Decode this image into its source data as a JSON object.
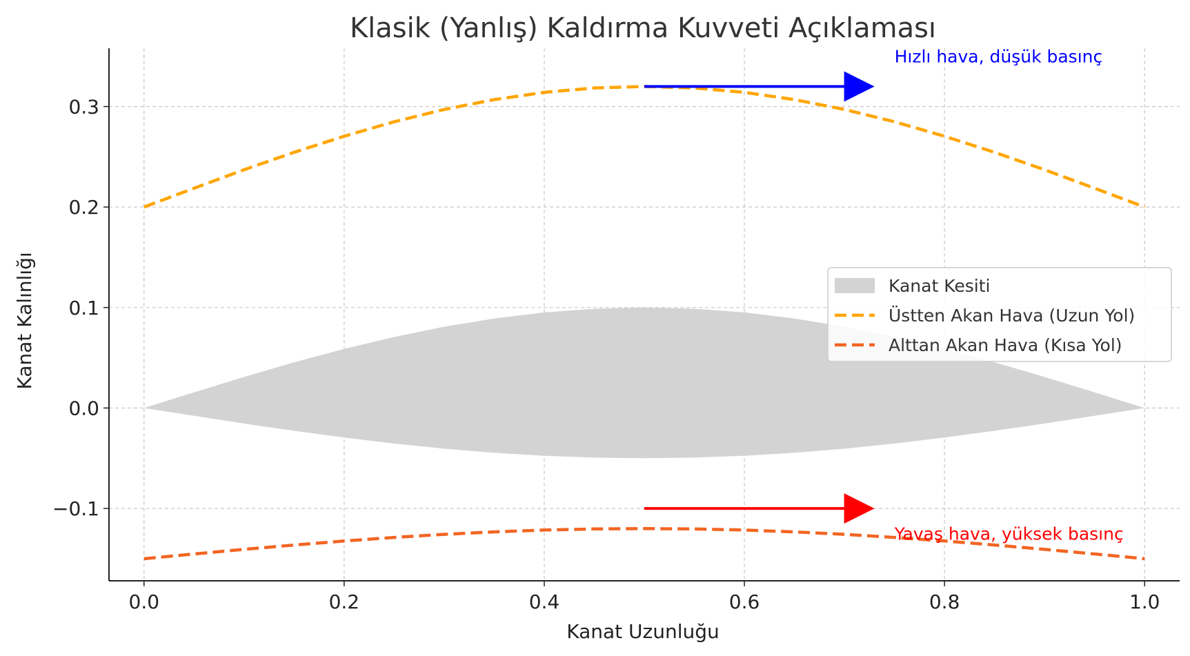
{
  "chart_data": {
    "type": "area",
    "title": "Klasik (Yanlış) Kaldırma Kuvveti Açıklaması",
    "xlabel": "Kanat Uzunluğu",
    "ylabel": "Kanat Kalınlığı",
    "xlim": [
      -0.035,
      1.035
    ],
    "ylim": [
      -0.172,
      0.358
    ],
    "xticks": [
      0.0,
      0.2,
      0.4,
      0.6,
      0.8,
      1.0
    ],
    "xtick_labels": [
      "0.0",
      "0.2",
      "0.4",
      "0.6",
      "0.8",
      "1.0"
    ],
    "yticks": [
      -0.1,
      0.0,
      0.1,
      0.2,
      0.3
    ],
    "ytick_labels": [
      "−0.1",
      "0.0",
      "0.1",
      "0.2",
      "0.3"
    ],
    "grid": true,
    "legend_position": "center-right",
    "series": [
      {
        "name": "Kanat Kesiti",
        "kind": "fill",
        "color": "#d3d3d3",
        "x": [
          0.0,
          0.05,
          0.1,
          0.15,
          0.2,
          0.25,
          0.3,
          0.35,
          0.4,
          0.45,
          0.5,
          0.55,
          0.6,
          0.65,
          0.7,
          0.75,
          0.8,
          0.85,
          0.9,
          0.95,
          1.0
        ],
        "upper": [
          0.0,
          0.0156,
          0.0309,
          0.0454,
          0.0588,
          0.0707,
          0.0809,
          0.0891,
          0.0951,
          0.0988,
          0.1,
          0.0988,
          0.0951,
          0.0891,
          0.0809,
          0.0707,
          0.0588,
          0.0454,
          0.0309,
          0.0156,
          0.0
        ],
        "lower": [
          0.0,
          -0.0078,
          -0.0155,
          -0.0227,
          -0.0294,
          -0.0354,
          -0.0405,
          -0.0446,
          -0.0476,
          -0.0494,
          -0.05,
          -0.0494,
          -0.0476,
          -0.0446,
          -0.0405,
          -0.0354,
          -0.0294,
          -0.0227,
          -0.0155,
          -0.0078,
          0.0
        ]
      },
      {
        "name": "Üstten Akan Hava (Uzun Yol)",
        "kind": "line",
        "style": "dashed",
        "color": "#ffa500",
        "x": [
          0.0,
          0.05,
          0.1,
          0.15,
          0.2,
          0.25,
          0.3,
          0.35,
          0.4,
          0.45,
          0.5,
          0.55,
          0.6,
          0.65,
          0.7,
          0.75,
          0.8,
          0.85,
          0.9,
          0.95,
          1.0
        ],
        "y": [
          0.2,
          0.2187,
          0.2371,
          0.2545,
          0.2705,
          0.2849,
          0.2971,
          0.3069,
          0.3141,
          0.3185,
          0.32,
          0.3185,
          0.3141,
          0.3069,
          0.2971,
          0.2849,
          0.2705,
          0.2545,
          0.2371,
          0.2187,
          0.2
        ]
      },
      {
        "name": "Alttan Akan Hava (Kısa Yol)",
        "kind": "line",
        "style": "dashed",
        "color": "#f26522",
        "x": [
          0.0,
          0.05,
          0.1,
          0.15,
          0.2,
          0.25,
          0.3,
          0.35,
          0.4,
          0.45,
          0.5,
          0.55,
          0.6,
          0.65,
          0.7,
          0.75,
          0.8,
          0.85,
          0.9,
          0.95,
          1.0
        ],
        "y": [
          -0.15,
          -0.1453,
          -0.1407,
          -0.1364,
          -0.1324,
          -0.1288,
          -0.1257,
          -0.1233,
          -0.1215,
          -0.1204,
          -0.12,
          -0.1204,
          -0.1215,
          -0.1233,
          -0.1257,
          -0.1288,
          -0.1324,
          -0.1364,
          -0.1407,
          -0.1453,
          -0.15
        ]
      }
    ],
    "arrows": [
      {
        "x_start": 0.5,
        "y": 0.32,
        "x_end": 0.73,
        "color": "#0000ff"
      },
      {
        "x_start": 0.5,
        "y": -0.1,
        "x_end": 0.73,
        "color": "#ff0000"
      }
    ],
    "annotations": [
      {
        "text": "Hızlı hava, düşük basınç",
        "x": 0.75,
        "y": 0.35,
        "color": "#0000ff"
      },
      {
        "text": "Yavaş hava, yüksek basınç",
        "x": 0.75,
        "y": -0.125,
        "color": "#ff0000"
      }
    ]
  }
}
